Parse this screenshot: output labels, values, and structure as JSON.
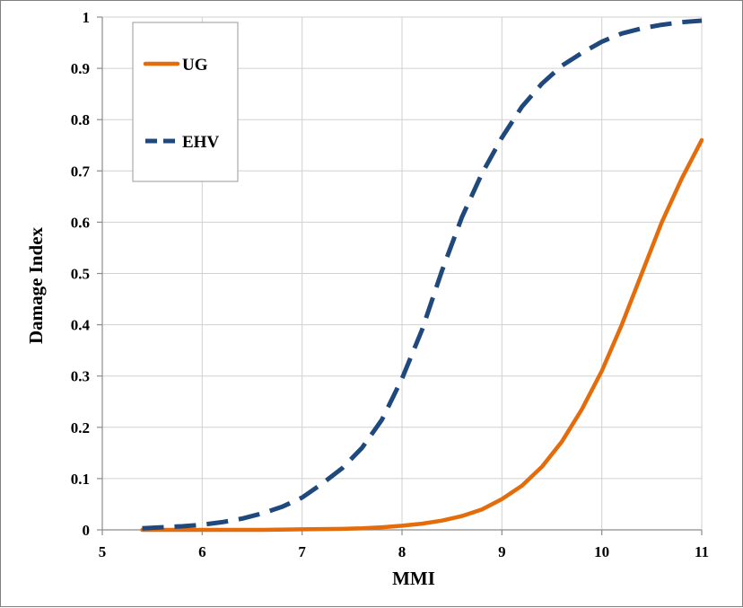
{
  "chart_data": {
    "type": "line",
    "xlabel": "MMI",
    "ylabel": "Damage Index",
    "xlim": [
      5,
      11
    ],
    "ylim": [
      0,
      1
    ],
    "x_ticks": [
      "5",
      "6",
      "7",
      "8",
      "9",
      "10",
      "11"
    ],
    "y_ticks": [
      "0",
      "0.1",
      "0.2",
      "0.3",
      "0.4",
      "0.5",
      "0.6",
      "0.7",
      "0.8",
      "0.9",
      "1"
    ],
    "grid": true,
    "legend_position": "top-left",
    "series": [
      {
        "name": "UG",
        "color": "#e46c0a",
        "style": "solid",
        "x": [
          5.4,
          5.8,
          6.2,
          6.6,
          7.0,
          7.4,
          7.6,
          7.8,
          8.0,
          8.2,
          8.4,
          8.6,
          8.8,
          9.0,
          9.2,
          9.4,
          9.6,
          9.8,
          10.0,
          10.2,
          10.4,
          10.6,
          10.8,
          11.0
        ],
        "y": [
          0.0,
          0.0,
          0.0,
          0.0,
          0.001,
          0.002,
          0.003,
          0.005,
          0.008,
          0.012,
          0.018,
          0.027,
          0.04,
          0.06,
          0.086,
          0.123,
          0.172,
          0.235,
          0.31,
          0.4,
          0.5,
          0.6,
          0.685,
          0.76
        ]
      },
      {
        "name": "EHV",
        "color": "#1f497d",
        "style": "dashed",
        "x": [
          5.4,
          5.6,
          5.8,
          6.0,
          6.2,
          6.4,
          6.6,
          6.8,
          7.0,
          7.2,
          7.4,
          7.6,
          7.8,
          8.0,
          8.2,
          8.4,
          8.6,
          8.8,
          9.0,
          9.2,
          9.4,
          9.6,
          9.8,
          10.0,
          10.2,
          10.4,
          10.6,
          10.8,
          11.0
        ],
        "y": [
          0.003,
          0.005,
          0.007,
          0.01,
          0.015,
          0.022,
          0.032,
          0.045,
          0.063,
          0.09,
          0.12,
          0.16,
          0.215,
          0.295,
          0.39,
          0.505,
          0.61,
          0.695,
          0.765,
          0.825,
          0.87,
          0.905,
          0.93,
          0.952,
          0.968,
          0.978,
          0.985,
          0.99,
          0.993
        ]
      }
    ]
  }
}
